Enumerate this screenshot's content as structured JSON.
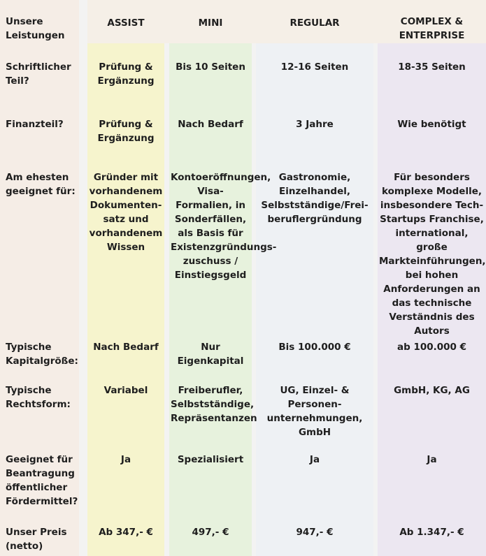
{
  "colors": {
    "label_col": "#f5ede6",
    "assist": "#f6f4cd",
    "mini": "#e7f2dd",
    "regular": "#eef1f4",
    "complex": "#ece7f1",
    "header": "#f5efe7"
  },
  "header": {
    "label": "Unsere Leistungen",
    "columns": [
      "ASSIST",
      "MINI",
      "REGULAR",
      "COMPLEX & ENTERPRISE"
    ]
  },
  "rows": [
    {
      "label": "Schriftlicher Teil?",
      "values": [
        "Prüfung & Ergänzung",
        "Bis 10 Seiten",
        "12-16 Seiten",
        "18-35 Seiten"
      ]
    },
    {
      "label": "Finanzteil?",
      "values": [
        "Prüfung & Ergänzung",
        "Nach Bedarf",
        "3 Jahre",
        "Wie benötigt"
      ]
    },
    {
      "label": "Am ehesten geeignet für:",
      "values": [
        "Gründer mit vorhandenem Dokumenten-satz und vorhandenem Wissen",
        "Kontoeröffnungen, Visa-Formalien, in Sonderfällen, als Basis für Existenzgründungs-zuschuss / Einstiegsgeld",
        "Gastronomie, Einzelhandel, Selbstständige/Frei-beruflergründung",
        "Für besonders komplexe Modelle, insbesondere Tech-Startups Franchise, international, große Markteinführungen, bei hohen Anforderungen an das technische Verständnis des Autors"
      ]
    },
    {
      "label": "Typische Kapitalgröße:",
      "values": [
        "Nach Bedarf",
        "Nur Eigenkapital",
        "Bis 100.000 €",
        "ab 100.000 €"
      ]
    },
    {
      "label": "Typische Rechtsform:",
      "values": [
        "Variabel",
        "Freiberufler, Selbstständige, Repräsentanzen",
        "UG, Einzel- & Personen-unternehmungen, GmbH",
        "GmbH, KG, AG"
      ]
    },
    {
      "label": "Geeignet für Beantragung öffentlicher Fördermittel?",
      "values": [
        "Ja",
        "Spezialisiert",
        "Ja",
        "Ja"
      ]
    },
    {
      "label": "Unser Preis (netto)",
      "values": [
        "Ab 347,- €",
        "497,- €",
        "947,- €",
        "Ab 1.347,- €"
      ]
    }
  ]
}
